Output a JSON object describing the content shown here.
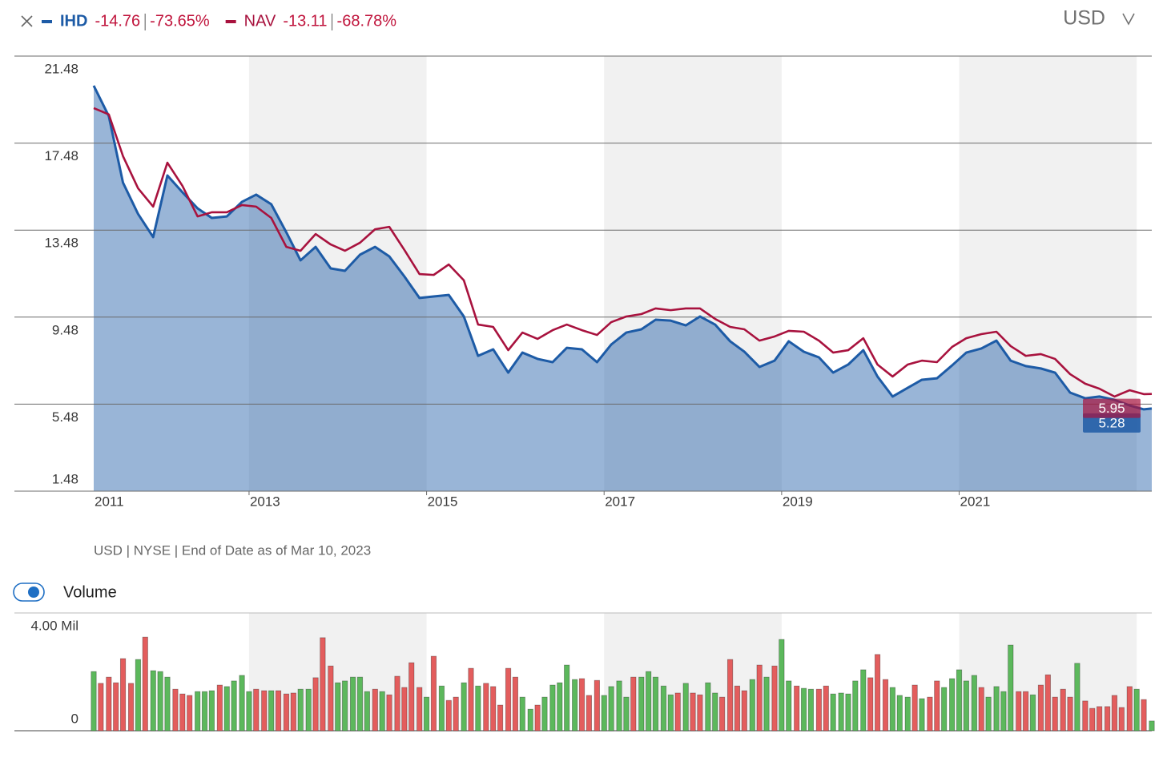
{
  "chart_data": [
    {
      "type": "line",
      "currency": "USD",
      "note": "USD | NYSE | End of Date as of Mar 10, 2023",
      "x": [
        2011.25,
        2011.42,
        2011.58,
        2011.75,
        2011.92,
        2012.08,
        2012.25,
        2012.42,
        2012.58,
        2012.75,
        2012.92,
        2013.08,
        2013.25,
        2013.42,
        2013.58,
        2013.75,
        2013.92,
        2014.08,
        2014.25,
        2014.42,
        2014.58,
        2014.75,
        2014.92,
        2015.08,
        2015.25,
        2015.42,
        2015.58,
        2015.75,
        2015.92,
        2016.08,
        2016.25,
        2016.42,
        2016.58,
        2016.75,
        2016.92,
        2017.08,
        2017.25,
        2017.42,
        2017.58,
        2017.75,
        2017.92,
        2018.08,
        2018.25,
        2018.42,
        2018.58,
        2018.75,
        2018.92,
        2019.08,
        2019.25,
        2019.42,
        2019.58,
        2019.75,
        2019.92,
        2020.08,
        2020.25,
        2020.42,
        2020.58,
        2020.75,
        2020.92,
        2021.08,
        2021.25,
        2021.42,
        2021.58,
        2021.75,
        2021.92,
        2022.08,
        2022.25,
        2022.42,
        2022.58,
        2022.75,
        2022.92,
        2023.08,
        2023.17
      ],
      "series": [
        {
          "name": "IHD",
          "color": "#1d5ba6",
          "fill": true,
          "change": -14.76,
          "change_pct": {
            "value": -73.65,
            "label": "-73.65%"
          },
          "values": [
            20.12,
            18.72,
            15.66,
            14.22,
            13.16,
            15.99,
            15.22,
            14.48,
            14.04,
            14.11,
            14.78,
            15.11,
            14.67,
            13.38,
            12.09,
            12.71,
            11.72,
            11.61,
            12.35,
            12.71,
            12.27,
            11.35,
            10.36,
            10.43,
            10.5,
            9.51,
            7.7,
            8.0,
            6.93,
            7.85,
            7.56,
            7.41,
            8.07,
            8.0,
            7.41,
            8.22,
            8.77,
            8.92,
            9.36,
            9.32,
            9.1,
            9.51,
            9.14,
            8.37,
            7.89,
            7.19,
            7.48,
            8.37,
            7.89,
            7.63,
            6.93,
            7.3,
            7.96,
            6.75,
            5.83,
            6.23,
            6.6,
            6.67,
            7.26,
            7.85,
            8.04,
            8.4,
            7.48,
            7.23,
            7.12,
            6.93,
            6.01,
            5.75,
            5.83,
            5.68,
            5.42,
            5.24,
            5.28
          ]
        },
        {
          "name": "NAV",
          "color": "#a8123e",
          "fill": false,
          "change": -13.11,
          "change_pct": {
            "value": -68.78,
            "label": "-68.78%"
          },
          "values": [
            19.09,
            18.8,
            16.88,
            15.4,
            14.56,
            16.58,
            15.51,
            14.11,
            14.3,
            14.3,
            14.63,
            14.56,
            14.04,
            12.71,
            12.53,
            13.3,
            12.82,
            12.53,
            12.9,
            13.52,
            13.63,
            12.57,
            11.46,
            11.42,
            11.9,
            11.17,
            9.14,
            9.03,
            7.96,
            8.77,
            8.48,
            8.88,
            9.14,
            8.88,
            8.66,
            9.25,
            9.51,
            9.62,
            9.88,
            9.8,
            9.88,
            9.88,
            9.4,
            9.03,
            8.92,
            8.4,
            8.59,
            8.85,
            8.81,
            8.4,
            7.85,
            7.96,
            8.51,
            7.3,
            6.75,
            7.3,
            7.48,
            7.41,
            8.11,
            8.51,
            8.7,
            8.81,
            8.15,
            7.7,
            7.78,
            7.56,
            6.86,
            6.42,
            6.19,
            5.83,
            6.12,
            5.94,
            5.95
          ]
        }
      ],
      "xlim": [
        2011.25,
        2023.17
      ],
      "xticks": [
        2011,
        2013,
        2015,
        2017,
        2019,
        2021
      ],
      "ylim": [
        1.48,
        21.48
      ],
      "yticks": [
        1.48,
        5.48,
        9.48,
        13.48,
        17.48,
        21.48
      ],
      "grid": true
    },
    {
      "type": "bar",
      "title": "Volume",
      "visible": true,
      "x": [
        2011.25,
        2011.33,
        2011.42,
        2011.5,
        2011.58,
        2011.67,
        2011.75,
        2011.83,
        2011.92,
        2012,
        2012.08,
        2012.17,
        2012.25,
        2012.33,
        2012.42,
        2012.5,
        2012.58,
        2012.67,
        2012.75,
        2012.83,
        2012.92,
        2013,
        2013.08,
        2013.17,
        2013.25,
        2013.33,
        2013.42,
        2013.5,
        2013.58,
        2013.67,
        2013.75,
        2013.83,
        2013.92,
        2014,
        2014.08,
        2014.17,
        2014.25,
        2014.33,
        2014.42,
        2014.5,
        2014.58,
        2014.67,
        2014.75,
        2014.83,
        2014.92,
        2015,
        2015.08,
        2015.17,
        2015.25,
        2015.33,
        2015.42,
        2015.5,
        2015.58,
        2015.67,
        2015.75,
        2015.83,
        2015.92,
        2016,
        2016.08,
        2016.17,
        2016.25,
        2016.33,
        2016.42,
        2016.5,
        2016.58,
        2016.67,
        2016.75,
        2016.83,
        2016.92,
        2017,
        2017.08,
        2017.17,
        2017.25,
        2017.33,
        2017.42,
        2017.5,
        2017.58,
        2017.67,
        2017.75,
        2017.83,
        2017.92,
        2018,
        2018.08,
        2018.17,
        2018.25,
        2018.33,
        2018.42,
        2018.5,
        2018.58,
        2018.67,
        2018.75,
        2018.83,
        2018.92,
        2019,
        2019.08,
        2019.17,
        2019.25,
        2019.33,
        2019.42,
        2019.5,
        2019.58,
        2019.67,
        2019.75,
        2019.83,
        2019.92,
        2020,
        2020.08,
        2020.17,
        2020.25,
        2020.33,
        2020.42,
        2020.5,
        2020.58,
        2020.67,
        2020.75,
        2020.83,
        2020.92,
        2021,
        2021.08,
        2021.17,
        2021.25,
        2021.33,
        2021.42,
        2021.5,
        2021.58,
        2021.67,
        2021.75,
        2021.83,
        2021.92,
        2022,
        2022.08,
        2022.17,
        2022.25,
        2022.33,
        2022.42,
        2022.5,
        2022.58,
        2022.67,
        2022.75,
        2022.83,
        2022.92,
        2023,
        2023.08,
        2023.17
      ],
      "values": [
        2.01,
        1.61,
        1.82,
        1.63,
        2.45,
        1.61,
        2.42,
        3.18,
        2.04,
        2.01,
        1.82,
        1.41,
        1.25,
        1.2,
        1.33,
        1.33,
        1.36,
        1.55,
        1.5,
        1.69,
        1.88,
        1.33,
        1.41,
        1.36,
        1.36,
        1.36,
        1.25,
        1.28,
        1.41,
        1.41,
        1.8,
        3.16,
        2.2,
        1.63,
        1.69,
        1.82,
        1.82,
        1.33,
        1.41,
        1.33,
        1.22,
        1.85,
        1.47,
        2.31,
        1.47,
        1.14,
        2.53,
        1.52,
        1.03,
        1.14,
        1.63,
        2.12,
        1.52,
        1.61,
        1.5,
        0.87,
        2.12,
        1.82,
        1.14,
        0.73,
        0.87,
        1.14,
        1.55,
        1.63,
        2.23,
        1.74,
        1.77,
        1.2,
        1.71,
        1.2,
        1.5,
        1.69,
        1.14,
        1.82,
        1.82,
        2.01,
        1.82,
        1.52,
        1.22,
        1.28,
        1.61,
        1.28,
        1.22,
        1.63,
        1.28,
        1.14,
        2.42,
        1.52,
        1.36,
        1.74,
        2.23,
        1.82,
        2.2,
        3.1,
        1.69,
        1.52,
        1.44,
        1.41,
        1.41,
        1.52,
        1.25,
        1.28,
        1.25,
        1.69,
        2.07,
        1.8,
        2.59,
        1.74,
        1.47,
        1.2,
        1.14,
        1.55,
        1.09,
        1.14,
        1.69,
        1.47,
        1.77,
        2.07,
        1.69,
        1.88,
        1.47,
        1.14,
        1.5,
        1.33,
        2.91,
        1.33,
        1.33,
        1.22,
        1.55,
        1.9,
        1.14,
        1.41,
        1.14,
        2.29,
        1.01,
        0.76,
        0.82,
        0.82,
        1.2,
        0.79,
        1.5,
        1.41,
        1.06,
        0.33
      ],
      "colors": [
        "#5cb85c",
        "#e35d5d",
        "#e35d5d",
        "#e35d5d",
        "#e35d5d",
        "#e35d5d",
        "#5cb85c",
        "#e35d5d",
        "#5cb85c",
        "#5cb85c",
        "#5cb85c",
        "#e35d5d",
        "#e35d5d",
        "#e35d5d",
        "#5cb85c",
        "#5cb85c",
        "#5cb85c",
        "#e35d5d",
        "#5cb85c",
        "#5cb85c",
        "#5cb85c",
        "#5cb85c",
        "#e35d5d",
        "#e35d5d",
        "#5cb85c",
        "#e35d5d",
        "#e35d5d",
        "#e35d5d",
        "#5cb85c",
        "#5cb85c",
        "#e35d5d",
        "#e35d5d",
        "#e35d5d",
        "#5cb85c",
        "#5cb85c",
        "#5cb85c",
        "#5cb85c",
        "#5cb85c",
        "#e35d5d",
        "#5cb85c",
        "#e35d5d",
        "#e35d5d",
        "#e35d5d",
        "#e35d5d",
        "#e35d5d",
        "#5cb85c",
        "#e35d5d",
        "#5cb85c",
        "#e35d5d",
        "#e35d5d",
        "#5cb85c",
        "#e35d5d",
        "#5cb85c",
        "#e35d5d",
        "#e35d5d",
        "#e35d5d",
        "#e35d5d",
        "#e35d5d",
        "#5cb85c",
        "#5cb85c",
        "#e35d5d",
        "#5cb85c",
        "#5cb85c",
        "#5cb85c",
        "#5cb85c",
        "#5cb85c",
        "#e35d5d",
        "#e35d5d",
        "#e35d5d",
        "#5cb85c",
        "#5cb85c",
        "#5cb85c",
        "#5cb85c",
        "#e35d5d",
        "#5cb85c",
        "#5cb85c",
        "#5cb85c",
        "#5cb85c",
        "#5cb85c",
        "#e35d5d",
        "#5cb85c",
        "#e35d5d",
        "#e35d5d",
        "#5cb85c",
        "#5cb85c",
        "#e35d5d",
        "#e35d5d",
        "#e35d5d",
        "#e35d5d",
        "#5cb85c",
        "#e35d5d",
        "#5cb85c",
        "#e35d5d",
        "#5cb85c",
        "#5cb85c",
        "#e35d5d",
        "#5cb85c",
        "#5cb85c",
        "#e35d5d",
        "#e35d5d",
        "#5cb85c",
        "#5cb85c",
        "#5cb85c",
        "#5cb85c",
        "#5cb85c",
        "#e35d5d",
        "#e35d5d",
        "#e35d5d",
        "#5cb85c",
        "#5cb85c",
        "#5cb85c",
        "#e35d5d",
        "#5cb85c",
        "#e35d5d",
        "#e35d5d",
        "#5cb85c",
        "#5cb85c",
        "#5cb85c",
        "#5cb85c",
        "#5cb85c",
        "#e35d5d",
        "#5cb85c",
        "#5cb85c",
        "#5cb85c",
        "#5cb85c",
        "#e35d5d",
        "#e35d5d",
        "#5cb85c",
        "#e35d5d",
        "#e35d5d",
        "#e35d5d",
        "#e35d5d",
        "#e35d5d",
        "#5cb85c",
        "#e35d5d",
        "#e35d5d",
        "#e35d5d",
        "#e35d5d",
        "#e35d5d",
        "#e35d5d",
        "#e35d5d",
        "#5cb85c",
        "#e35d5d",
        "#5cb85c"
      ],
      "ylim": [
        0,
        4
      ],
      "yticks": [
        0,
        {
          "value": 4,
          "label": "4.00 Mil"
        }
      ]
    }
  ]
}
